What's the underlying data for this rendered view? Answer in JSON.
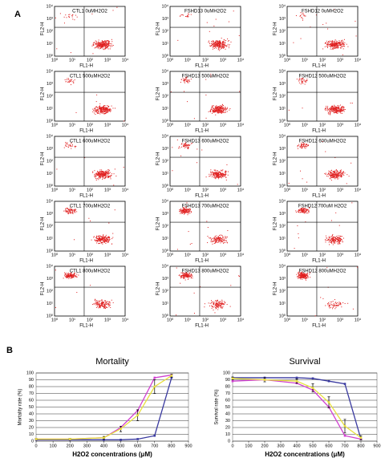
{
  "figure": {
    "panel_labels": [
      "A",
      "B"
    ],
    "flow": {
      "x_label": "FL1-H",
      "y_label": "FL2-H",
      "ticks": [
        "10⁰",
        "10¹",
        "10²",
        "10³",
        "10⁴"
      ],
      "panels": [
        "CTL1 0uMH2O2",
        "FSHD13 0uMH2O2",
        "FSHD12 0uMH2O2",
        "CTL1 500uMH2O2",
        "FSHD13 500uMH2O2",
        "FSHD12 500uMH2O2",
        "CTL1 600uMH2O2",
        "FSHD13 600uMH2O2",
        "FSHD12 600uMH2O2",
        "CTL1 700uMH2O2",
        "FSHD13 700uMH2O2",
        "FSHD12 700uM H2O2",
        "CTL1 800uMH2O2",
        "FSHD13 800uMH2O2",
        "FSHD12 800uMH2O2"
      ]
    }
  },
  "chart_data": [
    {
      "type": "line",
      "title": "Mortality",
      "x_label": "H2O2 concentrations (μM)",
      "y_label": "Mortality rate (%)",
      "x": [
        0,
        200,
        400,
        500,
        600,
        700,
        800
      ],
      "series": [
        {
          "color": "#3a3aa0",
          "values": [
            2,
            2,
            2,
            2,
            3,
            8,
            93
          ]
        },
        {
          "color": "#d040d0",
          "values": [
            3,
            3,
            5,
            20,
            45,
            93,
            97
          ]
        },
        {
          "color": "#e8e040",
          "values": [
            3,
            3,
            5,
            18,
            38,
            80,
            96
          ],
          "errors": [
            1,
            1,
            2,
            4,
            8,
            10,
            2
          ]
        }
      ],
      "xlim": [
        0,
        900
      ],
      "xticks": [
        0,
        100,
        200,
        300,
        400,
        500,
        600,
        700,
        800,
        900
      ],
      "ylim": [
        0,
        100
      ],
      "yticks": [
        0,
        10,
        20,
        30,
        40,
        50,
        60,
        70,
        80,
        90,
        100
      ],
      "grid": true
    },
    {
      "type": "line",
      "title": "Survival",
      "x_label": "H2O2 concentrations (μM)",
      "y_label": "Survival rate (%)",
      "x": [
        0,
        200,
        400,
        500,
        600,
        700,
        800
      ],
      "series": [
        {
          "color": "#3a3aa0",
          "values": [
            93,
            93,
            93,
            92,
            88,
            84,
            3
          ]
        },
        {
          "color": "#d040d0",
          "values": [
            88,
            90,
            85,
            75,
            50,
            8,
            3
          ]
        },
        {
          "color": "#e8e040",
          "values": [
            92,
            90,
            88,
            78,
            57,
            22,
            5
          ],
          "errors": [
            2,
            3,
            3,
            6,
            8,
            10,
            3
          ]
        }
      ],
      "xlim": [
        0,
        900
      ],
      "xticks": [
        0,
        100,
        200,
        300,
        400,
        500,
        600,
        700,
        800,
        900
      ],
      "ylim": [
        0,
        100
      ],
      "yticks": [
        0,
        10,
        20,
        30,
        40,
        50,
        60,
        70,
        80,
        90,
        100
      ],
      "grid": true
    }
  ]
}
